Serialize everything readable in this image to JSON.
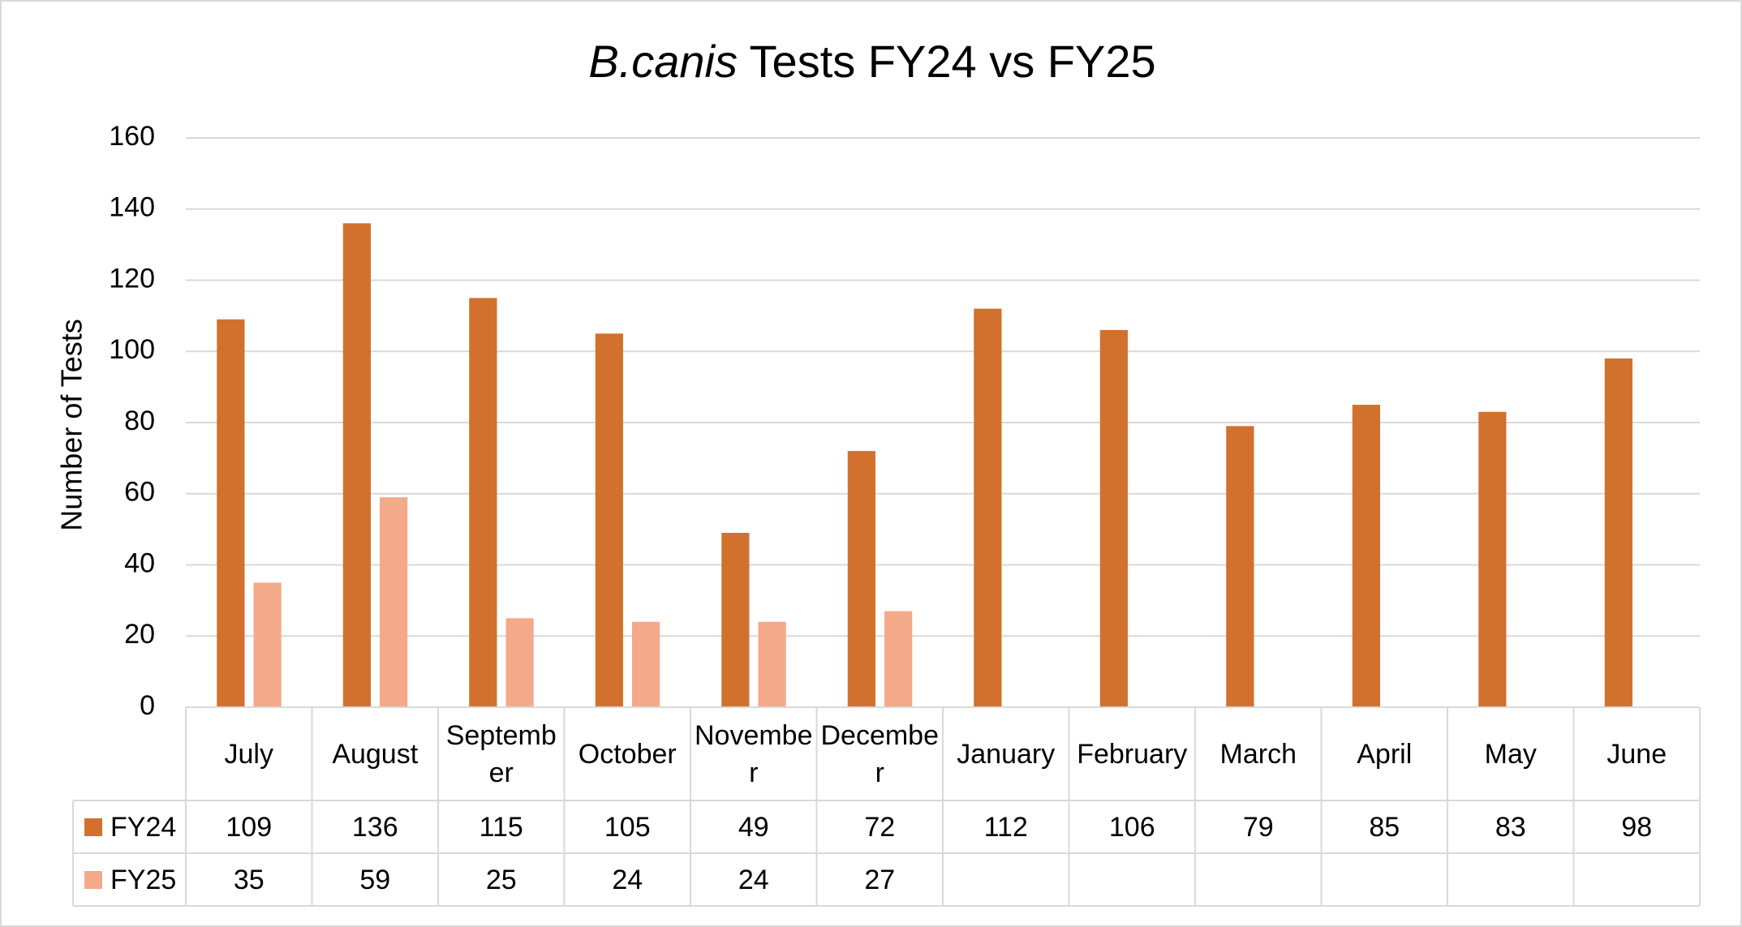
{
  "chart_data": {
    "type": "bar",
    "title": [
      {
        "text": "B.canis",
        "italic": true
      },
      {
        "text": " Tests FY24 vs FY25",
        "italic": false
      }
    ],
    "y_label": "Number of Tests",
    "categories": [
      "July",
      "August",
      "September",
      "October",
      "November",
      "December",
      "January",
      "February",
      "March",
      "April",
      "May",
      "June"
    ],
    "series": [
      {
        "name": "FY24",
        "color": "#d2702e",
        "values": [
          109,
          136,
          115,
          105,
          49,
          72,
          112,
          106,
          79,
          85,
          83,
          98
        ]
      },
      {
        "name": "FY25",
        "color": "#f4a98a",
        "values": [
          35,
          59,
          25,
          24,
          24,
          27,
          null,
          null,
          null,
          null,
          null,
          null
        ]
      }
    ],
    "ylim": [
      0,
      160
    ],
    "yticks": [
      0,
      20,
      40,
      60,
      80,
      100,
      120,
      140,
      160
    ],
    "grid": true,
    "data_table": true
  }
}
